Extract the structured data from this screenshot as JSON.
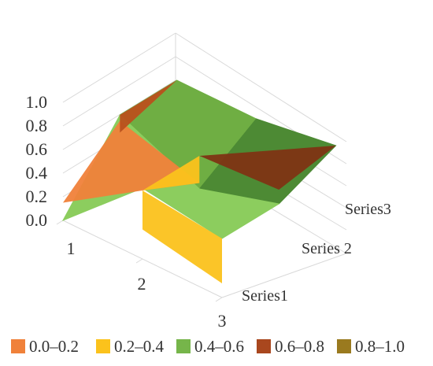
{
  "chart_data": {
    "type": "surface",
    "title": "",
    "categories": [
      "1",
      "2",
      "3"
    ],
    "series": [
      {
        "name": "Series1",
        "values": [
          0.0,
          0.6,
          0.5
        ]
      },
      {
        "name": "Series 2",
        "values": [
          0.6,
          0.3,
          0.5
        ]
      },
      {
        "name": "Series3",
        "values": [
          0.6,
          0.6,
          0.7
        ]
      }
    ],
    "z_ticks": [
      "1.0",
      "0.8",
      "0.6",
      "0.4",
      "0.2",
      "0.0"
    ],
    "zlim": [
      0,
      1
    ],
    "legend": {
      "position": "bottom",
      "entries": [
        {
          "label": "0.0–0.2",
          "color": "#f0813a"
        },
        {
          "label": "0.2–0.4",
          "color": "#fbc21c"
        },
        {
          "label": "0.4–0.6",
          "color": "#76b54a"
        },
        {
          "label": "0.6–0.8",
          "color": "#a9471e"
        },
        {
          "label": "0.8–1.0",
          "color": "#9a7a1f"
        }
      ]
    },
    "surface_shown_colors": [
      "#f0813a",
      "#fbc21c",
      "#8ccd5e",
      "#6fae43",
      "#5c9e3c",
      "#4d8a34",
      "#b9501c",
      "#7e3414"
    ]
  }
}
